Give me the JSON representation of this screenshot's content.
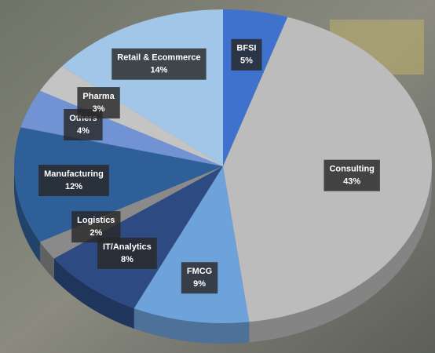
{
  "chart_data": {
    "type": "pie3d",
    "categories": [
      "BFSI",
      "Consulting",
      "FMCG",
      "IT/Analytics",
      "Logistics",
      "Manufacturing",
      "Others",
      "Pharma",
      "Retail & Ecommerce"
    ],
    "values": [
      5,
      43,
      9,
      8,
      2,
      12,
      4,
      3,
      14
    ],
    "value_labels": [
      "5%",
      "43%",
      "9%",
      "8%",
      "2%",
      "12%",
      "4%",
      "3%",
      "14%"
    ],
    "colors": [
      "#3f72cc",
      "#bcbcbc",
      "#6ea2da",
      "#2d4b82",
      "#8a8a8a",
      "#2f5f98",
      "#7193d4",
      "#c4c4c4",
      "#a2c6e8"
    ]
  }
}
